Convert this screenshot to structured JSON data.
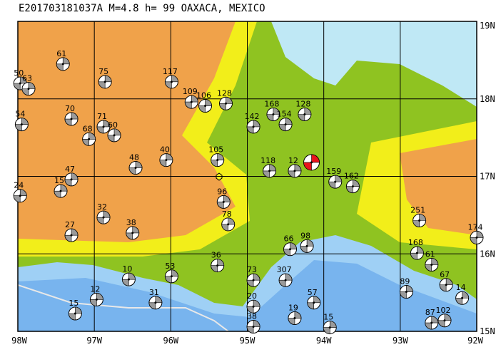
{
  "chart_data": {
    "type": "focal-map",
    "title": "E201703181037A M=4.8 h= 99 OAXACA, MEXICO",
    "xlim": [
      -98,
      -92
    ],
    "ylim": [
      15,
      19
    ],
    "xticks": [
      {
        "value": -98,
        "label": "98W"
      },
      {
        "value": -97,
        "label": "97W"
      },
      {
        "value": -96,
        "label": "96W"
      },
      {
        "value": -95,
        "label": "95W"
      },
      {
        "value": -94,
        "label": "94W"
      },
      {
        "value": -93,
        "label": "93W"
      },
      {
        "value": -92,
        "label": "92W"
      }
    ],
    "yticks": [
      {
        "value": 19,
        "label": "19N"
      },
      {
        "value": 18,
        "label": "18N"
      },
      {
        "value": 17,
        "label": "17N"
      },
      {
        "value": 16,
        "label": "16N"
      },
      {
        "value": 15,
        "label": "15N"
      }
    ],
    "mainshock": {
      "lon": -94.16,
      "lat": 17.18,
      "color": "#e8141c"
    },
    "event_color": "#9a9a9a",
    "events": [
      {
        "label": "61",
        "lon": -97.41,
        "lat": 18.45
      },
      {
        "label": "50",
        "lon": -97.97,
        "lat": 18.2
      },
      {
        "label": "63",
        "lon": -97.86,
        "lat": 18.13
      },
      {
        "label": "75",
        "lon": -96.86,
        "lat": 18.22
      },
      {
        "label": "117",
        "lon": -95.99,
        "lat": 18.22
      },
      {
        "label": "109",
        "lon": -95.73,
        "lat": 17.96
      },
      {
        "label": "106",
        "lon": -95.55,
        "lat": 17.91
      },
      {
        "label": "128",
        "lon": -95.28,
        "lat": 17.94
      },
      {
        "label": "54",
        "lon": -97.95,
        "lat": 17.67
      },
      {
        "label": "70",
        "lon": -97.3,
        "lat": 17.74
      },
      {
        "label": "71",
        "lon": -96.88,
        "lat": 17.64
      },
      {
        "label": "68",
        "lon": -97.07,
        "lat": 17.48
      },
      {
        "label": "60",
        "lon": -96.74,
        "lat": 17.53
      },
      {
        "label": "48",
        "lon": -96.46,
        "lat": 17.11
      },
      {
        "label": "40",
        "lon": -96.06,
        "lat": 17.21
      },
      {
        "label": "47",
        "lon": -97.3,
        "lat": 16.96
      },
      {
        "label": "15",
        "lon": -97.44,
        "lat": 16.81
      },
      {
        "label": "24",
        "lon": -97.97,
        "lat": 16.75
      },
      {
        "label": "105",
        "lon": -95.39,
        "lat": 17.21
      },
      {
        "label": "96",
        "lon": -95.31,
        "lat": 16.67
      },
      {
        "label": "78",
        "lon": -95.25,
        "lat": 16.38
      },
      {
        "label": "168",
        "lon": -94.66,
        "lat": 17.8
      },
      {
        "label": "142",
        "lon": -94.92,
        "lat": 17.64
      },
      {
        "label": "154",
        "lon": -94.5,
        "lat": 17.67
      },
      {
        "label": "128",
        "lon": -94.25,
        "lat": 17.8
      },
      {
        "label": "118",
        "lon": -94.71,
        "lat": 17.07
      },
      {
        "label": "12",
        "lon": -94.38,
        "lat": 17.07
      },
      {
        "label": "159",
        "lon": -93.85,
        "lat": 16.93
      },
      {
        "label": "162",
        "lon": -93.62,
        "lat": 16.87
      },
      {
        "label": "251",
        "lon": -92.75,
        "lat": 16.43
      },
      {
        "label": "174",
        "lon": -92.0,
        "lat": 16.21
      },
      {
        "label": "27",
        "lon": -97.3,
        "lat": 16.24
      },
      {
        "label": "32",
        "lon": -96.88,
        "lat": 16.47
      },
      {
        "label": "38",
        "lon": -96.5,
        "lat": 16.27
      },
      {
        "label": "10",
        "lon": -96.55,
        "lat": 15.67
      },
      {
        "label": "53",
        "lon": -95.99,
        "lat": 15.71
      },
      {
        "label": "12",
        "lon": -96.97,
        "lat": 15.41
      },
      {
        "label": "15",
        "lon": -97.25,
        "lat": 15.23
      },
      {
        "label": "31",
        "lon": -96.2,
        "lat": 15.37
      },
      {
        "label": "36",
        "lon": -95.39,
        "lat": 15.85
      },
      {
        "label": "73",
        "lon": -94.92,
        "lat": 15.66
      },
      {
        "label": "307",
        "lon": -94.5,
        "lat": 15.66
      },
      {
        "label": "66",
        "lon": -94.44,
        "lat": 16.06
      },
      {
        "label": "98",
        "lon": -94.22,
        "lat": 16.1
      },
      {
        "label": "57",
        "lon": -94.13,
        "lat": 15.37
      },
      {
        "label": "19",
        "lon": -94.38,
        "lat": 15.17
      },
      {
        "label": "15",
        "lon": -93.92,
        "lat": 15.05
      },
      {
        "label": "89",
        "lon": -92.92,
        "lat": 15.51
      },
      {
        "label": "67",
        "lon": -92.4,
        "lat": 15.6
      },
      {
        "label": "14",
        "lon": -92.19,
        "lat": 15.43
      },
      {
        "label": "87",
        "lon": -92.59,
        "lat": 15.11
      },
      {
        "label": "102",
        "lon": -92.42,
        "lat": 15.14
      },
      {
        "label": "168",
        "lon": -92.78,
        "lat": 16.01
      },
      {
        "label": "61",
        "lon": -92.59,
        "lat": 15.86
      },
      {
        "label": "20",
        "lon": -94.92,
        "lat": 15.32
      },
      {
        "label": "38",
        "lon": -94.92,
        "lat": 15.06
      }
    ]
  }
}
